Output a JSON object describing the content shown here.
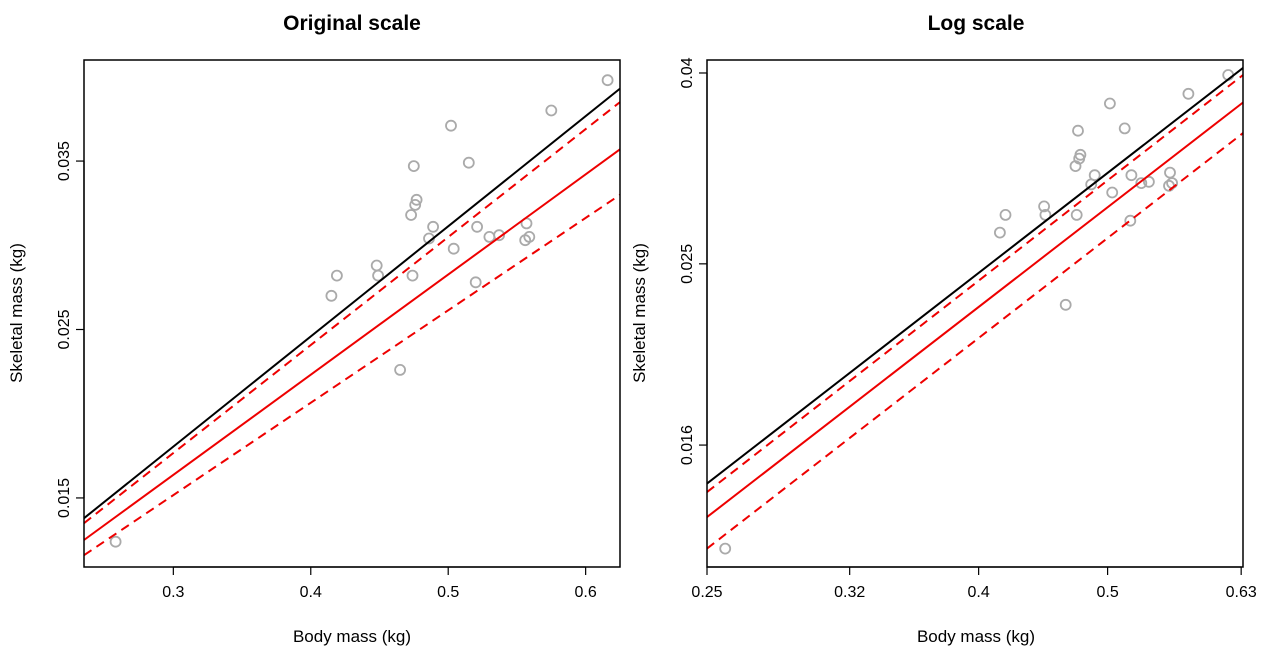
{
  "chart_data": [
    {
      "type": "scatter",
      "title": "Original scale",
      "xlabel": "Body mass (kg)",
      "ylabel": "Skeletal mass (kg)",
      "xscale": "linear",
      "yscale": "linear",
      "xlim": [
        0.235,
        0.625
      ],
      "ylim": [
        0.0109,
        0.041
      ],
      "xticks": [
        0.3,
        0.4,
        0.5,
        0.6
      ],
      "xtick_labels": [
        "0.3",
        "0.4",
        "0.5",
        "0.6"
      ],
      "yticks": [
        0.015,
        0.025,
        0.035
      ],
      "ytick_labels": [
        "0.015",
        "0.025",
        "0.035"
      ],
      "grid": false,
      "series": [
        {
          "kind": "points",
          "color": "#aaaaaa",
          "x": [
            0.258,
            0.415,
            0.419,
            0.448,
            0.449,
            0.465,
            0.473,
            0.474,
            0.475,
            0.476,
            0.477,
            0.486,
            0.489,
            0.502,
            0.504,
            0.515,
            0.52,
            0.521,
            0.53,
            0.537,
            0.556,
            0.557,
            0.559,
            0.575,
            0.616
          ],
          "y": [
            0.0124,
            0.027,
            0.0282,
            0.0288,
            0.0282,
            0.0226,
            0.0318,
            0.0282,
            0.0347,
            0.0324,
            0.0327,
            0.0304,
            0.0311,
            0.0371,
            0.0298,
            0.0349,
            0.0278,
            0.0311,
            0.0305,
            0.0306,
            0.0303,
            0.0313,
            0.0305,
            0.038,
            0.0398
          ]
        },
        {
          "kind": "line",
          "color": "#000000",
          "dash": "solid",
          "x": [
            0.235,
            0.625
          ],
          "y": [
            0.0138,
            0.0393
          ]
        },
        {
          "kind": "line",
          "color": "#ee0000",
          "dash": "dashed",
          "x": [
            0.235,
            0.625
          ],
          "y": [
            0.0135,
            0.0385
          ]
        },
        {
          "kind": "line",
          "color": "#ee0000",
          "dash": "solid",
          "x": [
            0.235,
            0.625
          ],
          "y": [
            0.0125,
            0.0357
          ]
        },
        {
          "kind": "line",
          "color": "#ee0000",
          "dash": "dashed",
          "x": [
            0.235,
            0.625
          ],
          "y": [
            0.0116,
            0.033
          ]
        }
      ]
    },
    {
      "type": "scatter",
      "title": "Log scale",
      "xlabel": "Body mass (kg)",
      "ylabel": "Skeletal mass (kg)",
      "xscale": "log",
      "yscale": "log",
      "xlim": [
        0.25,
        0.632
      ],
      "ylim": [
        0.01185,
        0.0413
      ],
      "xticks": [
        0.25,
        0.32,
        0.4,
        0.5,
        0.63
      ],
      "xtick_labels": [
        "0.25",
        "0.32",
        "0.4",
        "0.5",
        "0.63"
      ],
      "yticks": [
        0.016,
        0.025,
        0.04
      ],
      "ytick_labels": [
        "0.016",
        "0.025",
        "0.04"
      ],
      "grid": false,
      "series": [
        {
          "kind": "points",
          "color": "#aaaaaa",
          "x": [
            0.258,
            0.415,
            0.419,
            0.448,
            0.449,
            0.465,
            0.473,
            0.474,
            0.475,
            0.476,
            0.477,
            0.486,
            0.489,
            0.502,
            0.504,
            0.515,
            0.52,
            0.521,
            0.53,
            0.537,
            0.556,
            0.557,
            0.559,
            0.575,
            0.616
          ],
          "y": [
            0.0124,
            0.027,
            0.0282,
            0.0288,
            0.0282,
            0.0226,
            0.0318,
            0.0282,
            0.0347,
            0.0324,
            0.0327,
            0.0304,
            0.0311,
            0.0371,
            0.0298,
            0.0349,
            0.0278,
            0.0311,
            0.0305,
            0.0306,
            0.0303,
            0.0313,
            0.0305,
            0.038,
            0.0398
          ]
        },
        {
          "kind": "line",
          "color": "#000000",
          "dash": "solid",
          "x": [
            0.25,
            0.632
          ],
          "y": [
            0.01455,
            0.0405
          ]
        },
        {
          "kind": "line",
          "color": "#ee0000",
          "dash": "dashed",
          "x": [
            0.25,
            0.632
          ],
          "y": [
            0.01425,
            0.0398
          ]
        },
        {
          "kind": "line",
          "color": "#ee0000",
          "dash": "solid",
          "x": [
            0.25,
            0.632
          ],
          "y": [
            0.0134,
            0.0372
          ]
        },
        {
          "kind": "line",
          "color": "#ee0000",
          "dash": "dashed",
          "x": [
            0.25,
            0.632
          ],
          "y": [
            0.0124,
            0.0345
          ]
        }
      ]
    }
  ]
}
